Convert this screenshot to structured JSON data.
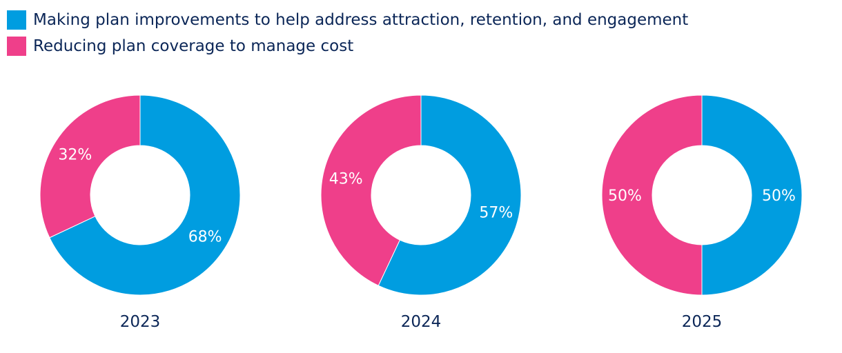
{
  "chart_data": {
    "type": "pie",
    "variant": "donut",
    "legend_position": "top-left",
    "series": [
      {
        "name": "Making plan improvements to help address attraction, retention, and engagement",
        "color": "#009de0"
      },
      {
        "name": "Reducing plan coverage to manage cost",
        "color": "#ef3f8a"
      }
    ],
    "charts": [
      {
        "category": "2023",
        "values": [
          68,
          32
        ],
        "labels": [
          "68%",
          "32%"
        ]
      },
      {
        "category": "2024",
        "values": [
          57,
          43
        ],
        "labels": [
          "57%",
          "43%"
        ]
      },
      {
        "category": "2025",
        "values": [
          50,
          50
        ],
        "labels": [
          "50%",
          "50%"
        ]
      }
    ]
  }
}
